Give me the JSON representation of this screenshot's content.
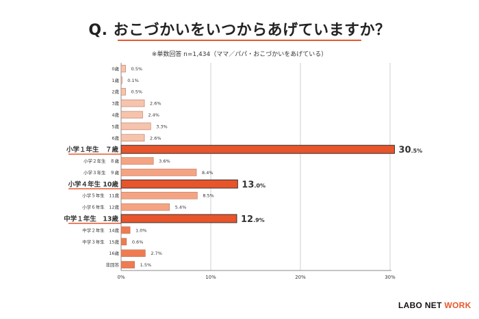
{
  "title": "Q. おこづかいをいつからあげていますか？",
  "subtitle": "※単数回答 n=1,434（ママ／パパ・おこづかいをあげている）",
  "logo": {
    "part1": "LABO NET ",
    "part2": "WORK"
  },
  "chart_data": {
    "type": "bar",
    "orientation": "horizontal",
    "categories": [
      "0歳",
      "1歳",
      "2歳",
      "3歳",
      "4歳",
      "5歳",
      "6歳",
      "小学１年生　７歳",
      "小学２年生　８歳",
      "小学３年生　９歳",
      "小学４年生 10歳",
      "小学５年生　11歳",
      "小学６年生　12歳",
      "中学１年生　13歳",
      "中学２年生　14歳",
      "中学３年生　15歳",
      "16歳",
      "非回答"
    ],
    "values": [
      0.5,
      0.1,
      0.5,
      2.6,
      2.4,
      3.3,
      2.6,
      30.5,
      3.6,
      8.4,
      13.0,
      8.5,
      5.4,
      12.9,
      1.0,
      0.6,
      2.7,
      1.5
    ],
    "value_labels": [
      "0.5%",
      "0.1%",
      "0.5%",
      "2.6%",
      "2.4%",
      "3.3%",
      "2.6%",
      "30.5%",
      "3.6%",
      "8.4%",
      "13.0%",
      "8.5%",
      "5.4%",
      "12.9%",
      "1.0%",
      "0.6%",
      "2.7%",
      "1.5%"
    ],
    "highlighted": [
      false,
      false,
      false,
      false,
      false,
      false,
      false,
      true,
      false,
      false,
      true,
      false,
      false,
      true,
      false,
      false,
      false,
      false
    ],
    "bar_colors": [
      "#f6c4ad",
      "#f6c4ad",
      "#f6c4ad",
      "#f6c4ad",
      "#f6c4ad",
      "#f6c4ad",
      "#f6c4ad",
      "#e8552b",
      "#f4a483",
      "#f4a483",
      "#e8552b",
      "#f4a483",
      "#f4a483",
      "#e8552b",
      "#ee7b52",
      "#ee7b52",
      "#ee7b52",
      "#ee7b52"
    ],
    "highlight_color": "#e8552b",
    "x_ticks": [
      "0%",
      "10%",
      "20%",
      "30%"
    ],
    "xlim": [
      0,
      30
    ],
    "grid": true,
    "xlabel": "",
    "ylabel": ""
  }
}
